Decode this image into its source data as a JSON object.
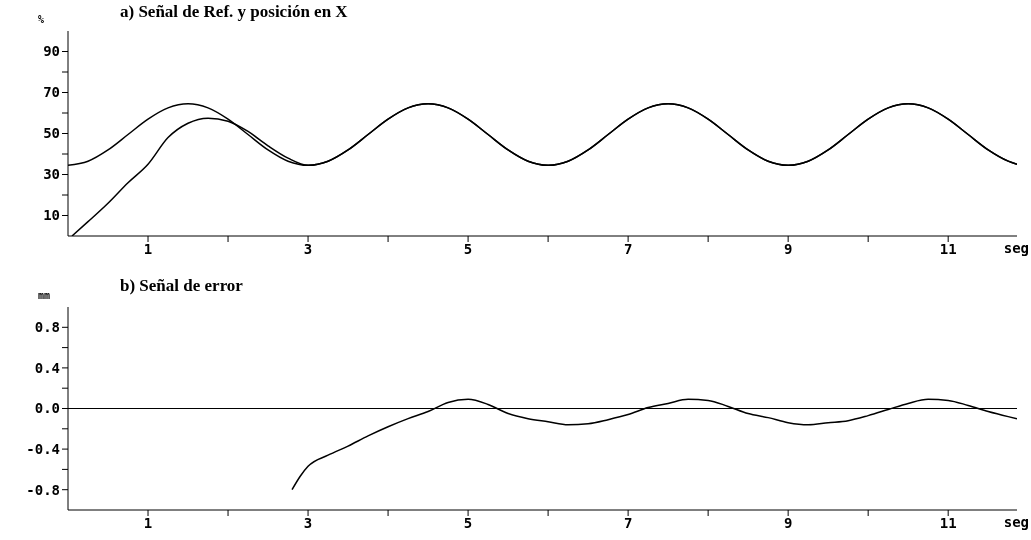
{
  "chart_data": [
    {
      "type": "line",
      "title": "a) Señal de Ref. y posición en X",
      "xlabel": "seg",
      "ylabel": "%",
      "xlim": [
        0,
        11.86
      ],
      "xticks": [
        1,
        {
          "value": 2,
          "label": null
        },
        3,
        {
          "value": 4,
          "label": null
        },
        5,
        {
          "value": 6,
          "label": null
        },
        7,
        {
          "value": 8,
          "label": null
        },
        9,
        {
          "value": 10,
          "label": null
        },
        11
      ],
      "ylim": [
        0,
        100
      ],
      "yticks": [
        10,
        {
          "value": 20,
          "label": null
        },
        30,
        {
          "value": 40,
          "label": null
        },
        50,
        {
          "value": 60,
          "label": null
        },
        70,
        {
          "value": 80,
          "label": null
        },
        90
      ],
      "series": [
        {
          "color": "#000000",
          "x": [
            0,
            0.25,
            0.5,
            0.75,
            1,
            1.25,
            1.5,
            1.75,
            2,
            2.25,
            2.5,
            2.75,
            3,
            3.25,
            3.5,
            3.75,
            4,
            4.25,
            4.5,
            4.75,
            5,
            5.25,
            5.5,
            5.75,
            6,
            6.25,
            6.5,
            6.75,
            7,
            7.25,
            7.5,
            7.75,
            8,
            8.25,
            8.5,
            8.75,
            9,
            9.25,
            9.5,
            9.75,
            10,
            10.25,
            10.5,
            10.75,
            11,
            11.25,
            11.5,
            11.75,
            11.86
          ],
          "values": [
            34.5,
            36.5,
            42,
            49.5,
            57,
            62.5,
            64.5,
            62.5,
            57,
            49.5,
            42,
            36.5,
            34.5,
            36.5,
            42,
            49.5,
            57,
            62.5,
            64.5,
            62.5,
            57,
            49.5,
            42,
            36.5,
            34.5,
            36.5,
            42,
            49.5,
            57,
            62.5,
            64.5,
            62.5,
            57,
            49.5,
            42,
            36.5,
            34.5,
            36.5,
            42,
            49.5,
            57,
            62.5,
            64.5,
            62.5,
            57,
            49.5,
            42,
            36.5,
            35
          ]
        },
        {
          "color": "#000000",
          "x": [
            0.05,
            0.25,
            0.5,
            0.75,
            1,
            1.25,
            1.5,
            1.75,
            2,
            2.25,
            2.5,
            2.75,
            3,
            3.25,
            3.5,
            3.75,
            4,
            4.25,
            4.5,
            4.75,
            5,
            5.25,
            5.5,
            5.75,
            6,
            6.25,
            6.5,
            6.75,
            7,
            7.25,
            7.5,
            7.75,
            8,
            8.25,
            8.5,
            8.75,
            9,
            9.25,
            9.5,
            9.75,
            10,
            10.25,
            10.5,
            10.75,
            11,
            11.25,
            11.5,
            11.75,
            11.86
          ],
          "values": [
            0,
            7,
            16,
            26,
            35,
            48,
            55,
            57.5,
            56,
            51,
            44,
            38,
            34.5,
            36.5,
            42,
            49.5,
            57,
            62.5,
            64.5,
            62.5,
            57,
            49.5,
            42,
            36.5,
            34.5,
            36.5,
            42,
            49.5,
            57,
            62.5,
            64.5,
            62.5,
            57,
            49.5,
            42,
            36.5,
            34.5,
            36.5,
            42,
            49.5,
            57,
            62.5,
            64.5,
            62.5,
            57,
            49.5,
            42,
            36.5,
            35
          ]
        }
      ]
    },
    {
      "type": "line",
      "title": "b) Señal de error",
      "xlabel": "seg",
      "ylabel": "mm",
      "xlim": [
        0,
        11.86
      ],
      "xticks": [
        1,
        {
          "value": 2,
          "label": null
        },
        3,
        {
          "value": 4,
          "label": null
        },
        5,
        {
          "value": 6,
          "label": null
        },
        7,
        {
          "value": 8,
          "label": null
        },
        9,
        {
          "value": 10,
          "label": null
        },
        11
      ],
      "ylim": [
        -1,
        1
      ],
      "yticks": [
        {
          "value": -0.8,
          "label": "-0.8"
        },
        {
          "value": -0.6,
          "label": null
        },
        {
          "value": -0.4,
          "label": "-0.4"
        },
        {
          "value": -0.2,
          "label": null
        },
        {
          "value": 0,
          "label": "0.0"
        },
        {
          "value": 0.2,
          "label": null
        },
        {
          "value": 0.4,
          "label": "0.4"
        },
        {
          "value": 0.6,
          "label": null
        },
        {
          "value": 0.8,
          "label": "0.8"
        }
      ],
      "ref_lines": [
        {
          "axis": "y",
          "value": 0,
          "color": "#000000"
        }
      ],
      "series": [
        {
          "color": "#000000",
          "x": [
            2.8,
            2.9,
            3,
            3.25,
            3.5,
            3.75,
            4,
            4.25,
            4.5,
            4.75,
            5,
            5.25,
            5.5,
            5.75,
            6,
            6.25,
            6.5,
            6.75,
            7,
            7.25,
            7.5,
            7.75,
            8,
            8.25,
            8.5,
            8.75,
            9,
            9.25,
            9.5,
            9.75,
            10,
            10.25,
            10.5,
            10.75,
            11,
            11.25,
            11.5,
            11.75,
            11.86
          ],
          "values": [
            -0.8,
            -0.67,
            -0.57,
            -0.46,
            -0.37,
            -0.27,
            -0.18,
            -0.1,
            -0.03,
            0.06,
            0.09,
            0.04,
            -0.05,
            -0.1,
            -0.13,
            -0.16,
            -0.15,
            -0.11,
            -0.06,
            0.01,
            0.05,
            0.09,
            0.08,
            0.02,
            -0.05,
            -0.09,
            -0.14,
            -0.16,
            -0.14,
            -0.12,
            -0.07,
            -0.01,
            0.05,
            0.09,
            0.08,
            0.03,
            -0.03,
            -0.08,
            -0.1
          ]
        }
      ]
    }
  ]
}
